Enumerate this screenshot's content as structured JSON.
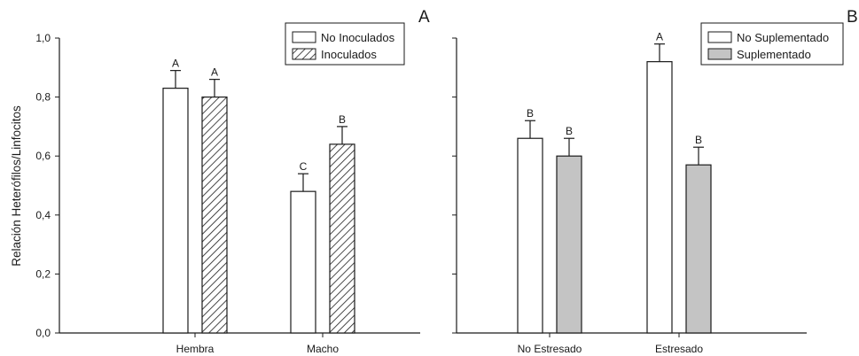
{
  "chart_data": [
    {
      "panel": "A",
      "type": "bar",
      "ylabel": "Relación Heterófilos/Linfocitos",
      "ylim": [
        0,
        1.0
      ],
      "yticks": [
        "0,0",
        "0,2",
        "0,4",
        "0,6",
        "0,8",
        "1,0"
      ],
      "categories": [
        "Hembra",
        "Macho"
      ],
      "legend_position": "top-right",
      "series": [
        {
          "name": "No Inoculados",
          "pattern": "white",
          "values": [
            0.83,
            0.48
          ],
          "errors": [
            0.06,
            0.06
          ],
          "significance": [
            "A",
            "C"
          ]
        },
        {
          "name": "Inoculados",
          "pattern": "hatched",
          "values": [
            0.8,
            0.64
          ],
          "errors": [
            0.06,
            0.06
          ],
          "significance": [
            "A",
            "B"
          ]
        }
      ]
    },
    {
      "panel": "B",
      "type": "bar",
      "ylim": [
        0,
        1.0
      ],
      "categories": [
        "No Estresado",
        "Estresado"
      ],
      "legend_position": "top-right",
      "series": [
        {
          "name": "No Suplementado",
          "pattern": "white",
          "values": [
            0.66,
            0.92
          ],
          "errors": [
            0.06,
            0.06
          ],
          "significance": [
            "B",
            "A"
          ]
        },
        {
          "name": "Suplementado",
          "pattern": "gray",
          "values": [
            0.6,
            0.57
          ],
          "errors": [
            0.06,
            0.06
          ],
          "significance": [
            "B",
            "B"
          ]
        }
      ]
    }
  ],
  "colors": {
    "axis": "#1a1a1a",
    "bar_white": "#ffffff",
    "bar_gray": "#c4c4c4",
    "hatch": "#1a1a1a"
  }
}
